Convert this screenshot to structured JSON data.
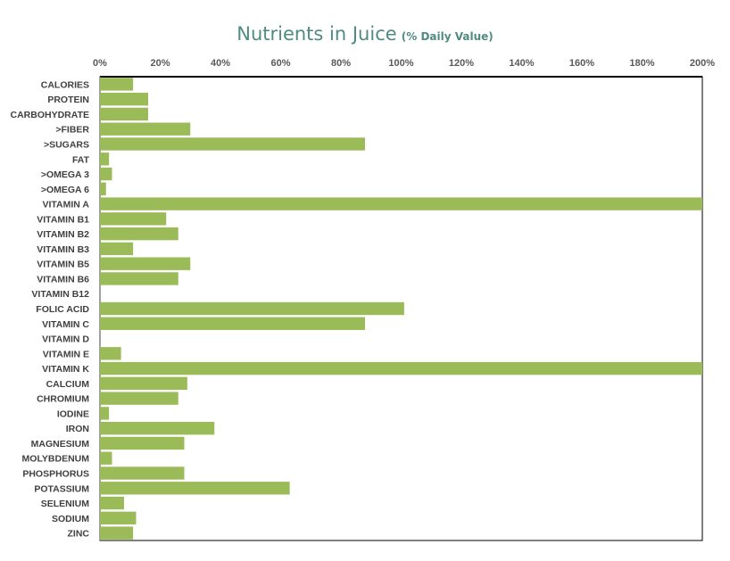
{
  "chart_data": {
    "type": "bar",
    "orientation": "horizontal",
    "title": "Nutrients in Juice",
    "subtitle": "(% Daily Value)",
    "xlabel": "",
    "ylabel": "",
    "xlim": [
      0,
      200
    ],
    "x_ticks": [
      "0%",
      "20%",
      "40%",
      "60%",
      "80%",
      "100%",
      "120%",
      "140%",
      "160%",
      "180%",
      "200%"
    ],
    "x_axis_position": "top",
    "grid": false,
    "bar_color": "#9bbb59",
    "categories": [
      "CALORIES",
      "PROTEIN",
      "CARBOHYDRATE",
      ">FIBER",
      ">SUGARS",
      "FAT",
      ">OMEGA 3",
      ">OMEGA 6",
      "VITAMIN A",
      "VITAMIN B1",
      "VITAMIN B2",
      "VITAMIN B3",
      "VITAMIN B5",
      "VITAMIN B6",
      "VITAMIN B12",
      "FOLIC ACID",
      "VITAMIN C",
      "VITAMIN D",
      "VITAMIN E",
      "VITAMIN K",
      "CALCIUM",
      "CHROMIUM",
      "IODINE",
      "IRON",
      "MAGNESIUM",
      "MOLYBDENUM",
      "PHOSPHORUS",
      "POTASSIUM",
      "SELENIUM",
      "SODIUM",
      "ZINC"
    ],
    "values": [
      11,
      16,
      16,
      30,
      88,
      3,
      4,
      2,
      200,
      22,
      26,
      11,
      30,
      26,
      0,
      101,
      88,
      0,
      7,
      200,
      29,
      26,
      3,
      38,
      28,
      4,
      28,
      63,
      8,
      12,
      11
    ]
  }
}
